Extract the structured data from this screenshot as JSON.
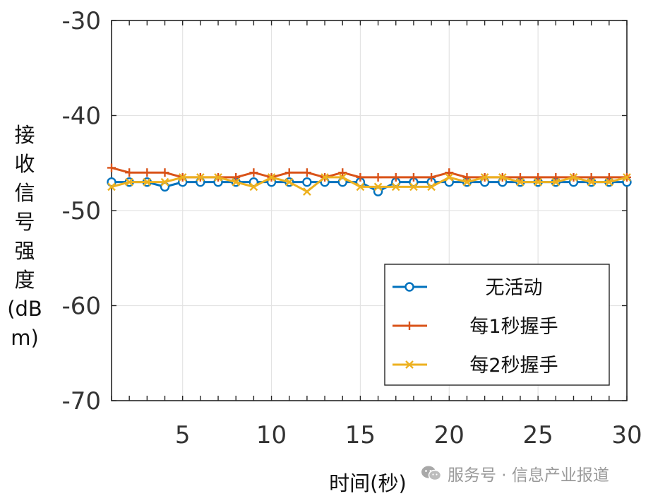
{
  "chart_data": {
    "type": "line",
    "xlabel": "时间(秒)",
    "ylabel": "接收信号强度(dBm)",
    "ylabel_lines": [
      "接",
      "收",
      "信",
      "号",
      "强",
      "度",
      "(dB",
      "m)"
    ],
    "xlim": [
      1,
      30
    ],
    "ylim": [
      -70,
      -30
    ],
    "xticks": [
      5,
      10,
      15,
      20,
      25,
      30
    ],
    "yticks": [
      -30,
      -40,
      -50,
      -60,
      -70
    ],
    "grid": true,
    "legend_position": "bottom-right",
    "x": [
      1,
      2,
      3,
      4,
      5,
      6,
      7,
      8,
      9,
      10,
      11,
      12,
      13,
      14,
      15,
      16,
      17,
      18,
      19,
      20,
      21,
      22,
      23,
      24,
      25,
      26,
      27,
      28,
      29,
      30
    ],
    "series": [
      {
        "name": "无活动",
        "color": "#0072bd",
        "marker": "circle",
        "values": [
          -47,
          -47,
          -47,
          -47.5,
          -47,
          -47,
          -47,
          -47,
          -47,
          -47,
          -47,
          -47,
          -47,
          -47,
          -47,
          -48,
          -47,
          -47,
          -47,
          -47,
          -47,
          -47,
          -47,
          -47,
          -47,
          -47,
          -47,
          -47,
          -47,
          -47
        ]
      },
      {
        "name": "每1秒握手",
        "color": "#d95319",
        "marker": "plus",
        "values": [
          -45.5,
          -46,
          -46,
          -46,
          -46.5,
          -46.5,
          -46.5,
          -46.5,
          -46,
          -46.5,
          -46,
          -46,
          -46.5,
          -46,
          -46.5,
          -46.5,
          -46.5,
          -46.5,
          -46.5,
          -46,
          -46.5,
          -46.5,
          -46.5,
          -46.5,
          -46.5,
          -46.5,
          -46.5,
          -46.5,
          -46.5,
          -46.5
        ]
      },
      {
        "name": "每2秒握手",
        "color": "#edb120",
        "marker": "x",
        "values": [
          -47.5,
          -47,
          -47,
          -47,
          -46.5,
          -46.5,
          -46.5,
          -47,
          -47.5,
          -46.5,
          -47,
          -48,
          -46.5,
          -46.5,
          -47.5,
          -47.5,
          -47.5,
          -47.5,
          -47.5,
          -46.5,
          -47,
          -46.5,
          -46.5,
          -47,
          -47,
          -47,
          -46.5,
          -47,
          -47,
          -46.5
        ]
      }
    ]
  },
  "watermark": {
    "icon": "wechat-icon",
    "text": "服务号 · 信息产业报道"
  }
}
